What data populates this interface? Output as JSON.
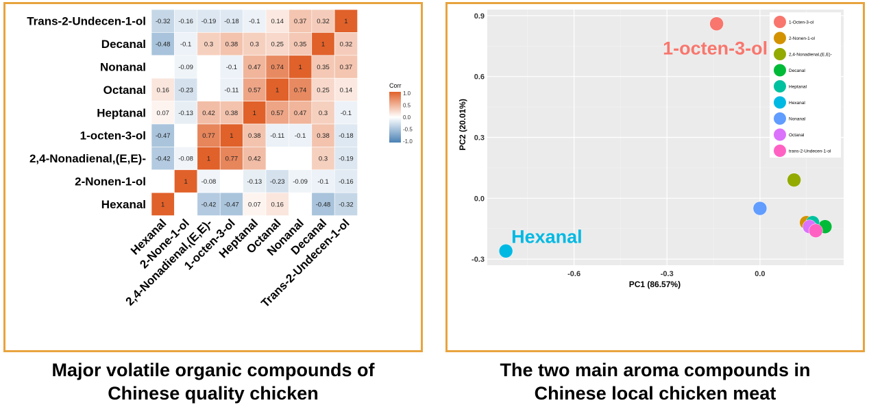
{
  "chart_data": [
    {
      "type": "heatmap",
      "variables": [
        "Hexanal",
        "2-Nonen-1-ol",
        "2,4-Nonadienal,(E,E)-",
        "1-octen-3-ol",
        "Heptanal",
        "Octanal",
        "Nonanal",
        "Decanal",
        "Trans-2-Undecen-1-ol"
      ],
      "x_tick_labels": [
        "Hexanal",
        "2-None-1-ol",
        "2,4-Nonadienal,(E,E)-",
        "1-octen-3-ol",
        "Heptanal",
        "Octanal",
        "Nonanal",
        "Decanal",
        "Trans-2-Undecen-1-ol"
      ],
      "rows": [
        {
          "label": "Trans-2-Undecen-1-ol",
          "values": [
            -0.32,
            -0.16,
            -0.19,
            -0.18,
            -0.1,
            0.14,
            0.37,
            0.32,
            1
          ]
        },
        {
          "label": "Decanal",
          "values": [
            -0.48,
            -0.1,
            0.3,
            0.38,
            0.3,
            0.25,
            0.35,
            1,
            0.32
          ]
        },
        {
          "label": "Nonanal",
          "values": [
            null,
            -0.09,
            null,
            -0.1,
            0.47,
            0.74,
            1,
            0.35,
            0.37
          ]
        },
        {
          "label": "Octanal",
          "values": [
            0.16,
            -0.23,
            null,
            -0.11,
            0.57,
            1,
            0.74,
            0.25,
            0.14
          ]
        },
        {
          "label": "Heptanal",
          "values": [
            0.07,
            -0.13,
            0.42,
            0.38,
            1,
            0.57,
            0.47,
            0.3,
            -0.1
          ]
        },
        {
          "label": "1-octen-3-ol",
          "values": [
            -0.47,
            null,
            0.77,
            1,
            0.38,
            -0.11,
            -0.1,
            0.38,
            -0.18
          ]
        },
        {
          "label": "2,4-Nonadienal,(E,E)-",
          "values": [
            -0.42,
            -0.08,
            1,
            0.77,
            0.42,
            null,
            null,
            0.3,
            -0.19
          ]
        },
        {
          "label": "2-Nonen-1-ol",
          "values": [
            null,
            1,
            -0.08,
            null,
            -0.13,
            -0.23,
            -0.09,
            -0.1,
            -0.16
          ]
        },
        {
          "label": "Hexanal",
          "values": [
            1,
            null,
            -0.42,
            -0.47,
            0.07,
            0.16,
            null,
            -0.48,
            -0.32
          ]
        }
      ],
      "legend": {
        "title": "Corr",
        "ticks": [
          "1.0",
          "0.5",
          "0.0",
          "-0.5",
          "-1.0"
        ],
        "range": [
          -1,
          1
        ],
        "colors": {
          "negative": "#4a81b4",
          "zero": "#ffffff",
          "positive": "#e0612a"
        }
      },
      "caption": [
        "Major volatile organic compounds of",
        "Chinese quality chicken"
      ]
    },
    {
      "type": "scatter",
      "xlabel": "PC1 (86.57%)",
      "ylabel": "PC2 (20.01%)",
      "xlim": [
        -0.88,
        0.27
      ],
      "ylim": [
        -0.33,
        0.93
      ],
      "x_ticks": [
        "-0.6",
        "-0.3",
        "0.0"
      ],
      "y_ticks": [
        "0.9",
        "0.6",
        "0.3",
        "0.0",
        "-0.3"
      ],
      "background": "#ebebeb",
      "grid": true,
      "legend_position": "top-right",
      "series": [
        {
          "name": "1-Octen-3-ol",
          "color": "#f8766d",
          "x": -0.14,
          "y": 0.86
        },
        {
          "name": "2-Nonen-1-ol",
          "color": "#d39200",
          "x": 0.15,
          "y": -0.12
        },
        {
          "name": "2,4-Nonadienal,(E,E)-",
          "color": "#93aa00",
          "x": 0.11,
          "y": 0.09
        },
        {
          "name": "Decanal",
          "color": "#00ba38",
          "x": 0.21,
          "y": -0.14
        },
        {
          "name": "Heptanal",
          "color": "#00c19f",
          "x": 0.17,
          "y": -0.12
        },
        {
          "name": "Hexanal",
          "color": "#00b9e3",
          "x": -0.82,
          "y": -0.26
        },
        {
          "name": "Nonanal",
          "color": "#619cff",
          "x": 0.0,
          "y": -0.05
        },
        {
          "name": "Octanal",
          "color": "#db72fb",
          "x": 0.16,
          "y": -0.14
        },
        {
          "name": "trans-2-Undecen-1-ol",
          "color": "#ff61c3",
          "x": 0.18,
          "y": -0.16
        }
      ],
      "annotations": [
        {
          "text": "1-octen-3-ol",
          "color": "#f8766d"
        },
        {
          "text": "Hexanal",
          "color": "#00b9e3"
        }
      ],
      "caption": [
        "The two main aroma compounds in",
        "Chinese local chicken meat"
      ]
    }
  ]
}
